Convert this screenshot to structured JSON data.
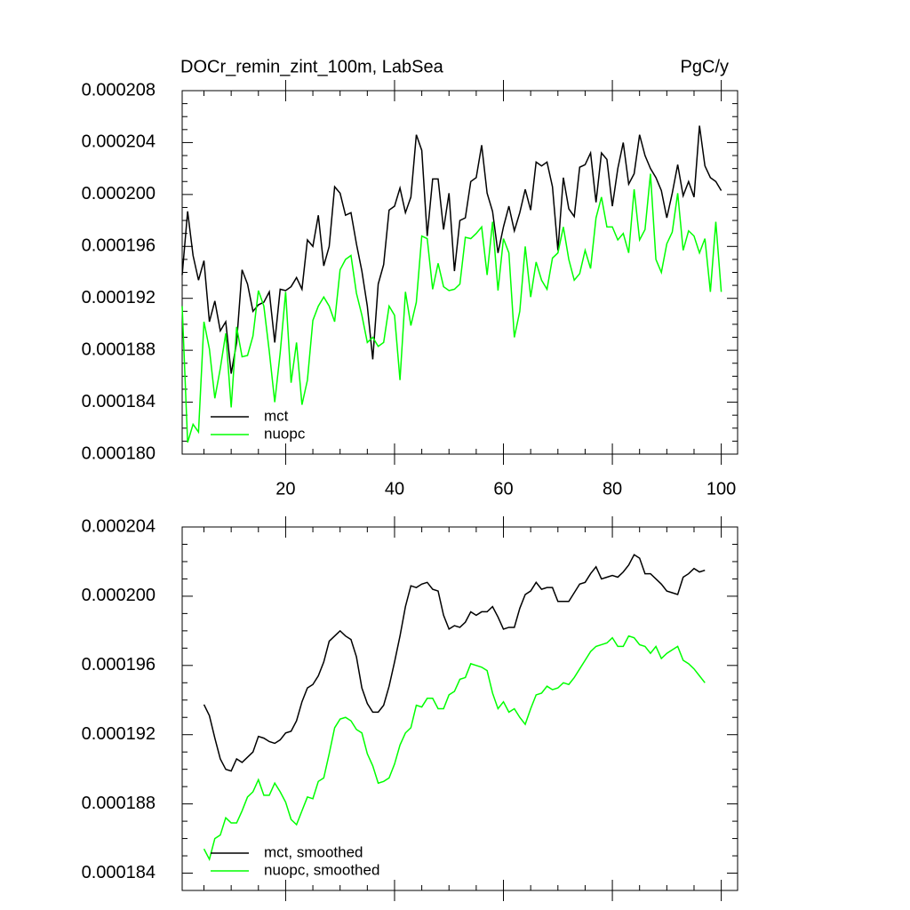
{
  "chart_data": [
    {
      "type": "line",
      "title": "DOCr_remin_zint_100m, LabSea",
      "units": "PgC/y",
      "x": [
        1,
        2,
        3,
        4,
        5,
        6,
        7,
        8,
        9,
        10,
        11,
        12,
        13,
        14,
        15,
        16,
        17,
        18,
        19,
        20,
        21,
        22,
        23,
        24,
        25,
        26,
        27,
        28,
        29,
        30,
        31,
        32,
        33,
        34,
        35,
        36,
        37,
        38,
        39,
        40,
        41,
        42,
        43,
        44,
        45,
        46,
        47,
        48,
        49,
        50,
        51,
        52,
        53,
        54,
        55,
        56,
        57,
        58,
        59,
        60,
        61,
        62,
        63,
        64,
        65,
        66,
        67,
        68,
        69,
        70,
        71,
        72,
        73,
        74,
        75,
        76,
        77,
        78,
        79,
        80,
        81,
        82,
        83,
        84,
        85,
        86,
        87,
        88,
        89,
        90,
        91,
        92,
        93,
        94,
        95,
        96,
        97,
        98,
        99,
        100
      ],
      "series": [
        {
          "name": "mct",
          "color": "#000000",
          "values": [
            0.0001938,
            0.0001987,
            0.0001953,
            0.0001934,
            0.0001949,
            0.0001902,
            0.0001918,
            0.0001895,
            0.0001902,
            0.0001862,
            0.0001886,
            0.0001942,
            0.0001931,
            0.000191,
            0.0001915,
            0.0001917,
            0.0001925,
            0.0001886,
            0.0001927,
            0.0001926,
            0.0001929,
            0.0001936,
            0.0001927,
            0.0001965,
            0.000196,
            0.0001984,
            0.0001945,
            0.000196,
            0.0002006,
            0.0002001,
            0.0001984,
            0.0001986,
            0.0001962,
            0.0001941,
            0.0001914,
            0.0001873,
            0.0001931,
            0.0001946,
            0.0001988,
            0.0001991,
            0.0002005,
            0.0001986,
            0.0001998,
            0.0002046,
            0.0002034,
            0.0001968,
            0.0002012,
            0.0002012,
            0.0001973,
            0.0002001,
            0.0001941,
            0.000198,
            0.0001982,
            0.000201,
            0.0002013,
            0.0002038,
            0.0002001,
            0.0001987,
            0.0001955,
            0.0001975,
            0.0001991,
            0.0001972,
            0.0001986,
            0.0002004,
            0.0001988,
            0.0002025,
            0.0002022,
            0.0002025,
            0.0002006,
            0.0001957,
            0.0002013,
            0.0001989,
            0.0001983,
            0.0002021,
            0.0002023,
            0.0002032,
            0.0001994,
            0.0002032,
            0.0002027,
            0.0001991,
            0.000202,
            0.000204,
            0.0002008,
            0.0002016,
            0.0002046,
            0.000203,
            0.000202,
            0.0002013,
            0.0002003,
            0.0001982,
            0.0002001,
            0.0002023,
            0.0001999,
            0.000201,
            0.0001998,
            0.0002053,
            0.0002022,
            0.0002013,
            0.000201,
            0.0002003
          ]
        },
        {
          "name": "nuopc",
          "color": "#00ff00",
          "values": [
            0.0001914,
            0.0001809,
            0.0001823,
            0.0001817,
            0.0001902,
            0.0001881,
            0.0001843,
            0.0001866,
            0.0001893,
            0.0001836,
            0.0001898,
            0.0001875,
            0.0001876,
            0.0001891,
            0.0001926,
            0.0001914,
            0.0001879,
            0.000184,
            0.0001878,
            0.0001925,
            0.0001855,
            0.0001886,
            0.0001838,
            0.0001857,
            0.0001903,
            0.0001914,
            0.0001921,
            0.0001914,
            0.0001902,
            0.0001942,
            0.000195,
            0.0001953,
            0.0001924,
            0.0001907,
            0.0001886,
            0.000189,
            0.0001883,
            0.0001886,
            0.0001914,
            0.0001907,
            0.0001857,
            0.0001925,
            0.0001899,
            0.0001917,
            0.0001968,
            0.0001966,
            0.0001927,
            0.0001947,
            0.0001929,
            0.0001926,
            0.0001927,
            0.0001931,
            0.0001967,
            0.0001966,
            0.000197,
            0.0001975,
            0.0001938,
            0.0001979,
            0.0001926,
            0.0001966,
            0.0001955,
            0.000189,
            0.000191,
            0.000196,
            0.0001921,
            0.0001948,
            0.0001934,
            0.0001927,
            0.0001951,
            0.0001955,
            0.0001975,
            0.000195,
            0.0001934,
            0.0001939,
            0.0001957,
            0.0001943,
            0.0001982,
            0.0001998,
            0.0001975,
            0.0001975,
            0.0001965,
            0.000197,
            0.0001955,
            0.0002004,
            0.0001965,
            0.0001973,
            0.0002016,
            0.000195,
            0.000194,
            0.0001962,
            0.0001971,
            0.0002001,
            0.0001957,
            0.0001972,
            0.0001968,
            0.0001955,
            0.0001966,
            0.0001925,
            0.0001979,
            0.0001925
          ]
        }
      ],
      "xlim": [
        1,
        103
      ],
      "xticks": [
        20,
        40,
        60,
        80,
        100
      ],
      "ylim": [
        0.00018,
        0.000208
      ],
      "yticks": [
        {
          "value": 0.00018,
          "label": "0.000180"
        },
        {
          "value": 0.000184,
          "label": "0.000184"
        },
        {
          "value": 0.000188,
          "label": "0.000188"
        },
        {
          "value": 0.000192,
          "label": "0.000192"
        },
        {
          "value": 0.000196,
          "label": "0.000196"
        },
        {
          "value": 0.0002,
          "label": "0.000200"
        },
        {
          "value": 0.000204,
          "label": "0.000204"
        },
        {
          "value": 0.000208,
          "label": "0.000208"
        }
      ],
      "xtick_labels": true,
      "legend": "lower left"
    },
    {
      "type": "line",
      "x": [
        5,
        6,
        7,
        8,
        9,
        10,
        11,
        12,
        13,
        14,
        15,
        16,
        17,
        18,
        19,
        20,
        21,
        22,
        23,
        24,
        25,
        26,
        27,
        28,
        29,
        30,
        31,
        32,
        33,
        34,
        35,
        36,
        37,
        38,
        39,
        40,
        41,
        42,
        43,
        44,
        45,
        46,
        47,
        48,
        49,
        50,
        51,
        52,
        53,
        54,
        55,
        56,
        57,
        58,
        59,
        60,
        61,
        62,
        63,
        64,
        65,
        66,
        67,
        68,
        69,
        70,
        71,
        72,
        73,
        74,
        75,
        76,
        77,
        78,
        79,
        80,
        81,
        82,
        83,
        84,
        85,
        86,
        87,
        88,
        89,
        90,
        91,
        92,
        93,
        94,
        95,
        96,
        97
      ],
      "series": [
        {
          "name": "mct, smoothed",
          "color": "#000000",
          "values": [
            0.00019374,
            0.0001931,
            0.0001918,
            0.0001906,
            0.00019,
            0.0001899,
            0.0001906,
            0.0001904,
            0.0001907,
            0.000191,
            0.0001919,
            0.0001918,
            0.0001916,
            0.0001915,
            0.0001917,
            0.0001921,
            0.0001922,
            0.0001928,
            0.0001939,
            0.0001947,
            0.0001949,
            0.0001954,
            0.0001962,
            0.0001974,
            0.0001977,
            0.000198,
            0.0001977,
            0.0001975,
            0.0001965,
            0.0001947,
            0.0001938,
            0.0001933,
            0.0001933,
            0.0001937,
            0.0001948,
            0.0001962,
            0.0001977,
            0.0001994,
            0.0002006,
            0.0002005,
            0.0002007,
            0.0002008,
            0.0002004,
            0.0002003,
            0.0001989,
            0.0001981,
            0.0001983,
            0.0001982,
            0.0001985,
            0.0001991,
            0.0001989,
            0.0001991,
            0.0001991,
            0.0001994,
            0.0001988,
            0.0001981,
            0.0001982,
            0.0001982,
            0.0001993,
            0.0002001,
            0.0002003,
            0.0002008,
            0.0002004,
            0.0002005,
            0.0002005,
            0.0001997,
            0.0001997,
            0.0001997,
            0.0002002,
            0.0002007,
            0.0002008,
            0.0002013,
            0.0002017,
            0.000201,
            0.0002011,
            0.0002012,
            0.0002011,
            0.0002014,
            0.0002018,
            0.0002024,
            0.0002022,
            0.0002013,
            0.0002013,
            0.000201,
            0.0002007,
            0.0002003,
            0.0002002,
            0.0002001,
            0.0002011,
            0.0002013,
            0.0002016,
            0.0002014,
            0.0002015
          ]
        },
        {
          "name": "nuopc, smoothed",
          "color": "#00ff00",
          "values": [
            0.0001854,
            0.0001848,
            0.000186,
            0.0001862,
            0.0001872,
            0.0001869,
            0.0001869,
            0.0001876,
            0.0001884,
            0.0001887,
            0.0001894,
            0.0001885,
            0.0001885,
            0.0001892,
            0.0001887,
            0.0001881,
            0.0001871,
            0.0001868,
            0.0001876,
            0.0001884,
            0.0001883,
            0.0001893,
            0.0001895,
            0.0001909,
            0.0001924,
            0.0001929,
            0.000193,
            0.0001928,
            0.0001923,
            0.0001921,
            0.0001909,
            0.0001902,
            0.0001892,
            0.0001893,
            0.0001895,
            0.0001903,
            0.0001914,
            0.0001921,
            0.0001924,
            0.0001937,
            0.0001936,
            0.0001941,
            0.0001941,
            0.0001935,
            0.0001935,
            0.0001943,
            0.0001945,
            0.0001952,
            0.0001953,
            0.0001961,
            0.000196,
            0.0001959,
            0.0001957,
            0.0001944,
            0.0001935,
            0.0001939,
            0.0001933,
            0.0001935,
            0.000193,
            0.0001926,
            0.0001935,
            0.0001943,
            0.0001944,
            0.0001948,
            0.0001946,
            0.0001947,
            0.000195,
            0.0001949,
            0.0001953,
            0.0001958,
            0.0001963,
            0.0001968,
            0.0001971,
            0.0001972,
            0.0001973,
            0.0001976,
            0.0001971,
            0.0001971,
            0.0001977,
            0.0001976,
            0.0001972,
            0.0001971,
            0.0001967,
            0.0001971,
            0.0001964,
            0.0001967,
            0.0001969,
            0.0001971,
            0.0001963,
            0.0001961,
            0.0001958,
            0.0001954,
            0.000195
          ]
        }
      ],
      "xlim": [
        1,
        103
      ],
      "xticks": [
        20,
        40,
        60,
        80,
        100
      ],
      "ylim": [
        0.000183,
        0.000204
      ],
      "yticks": [
        {
          "value": 0.000184,
          "label": "0.000184"
        },
        {
          "value": 0.000188,
          "label": "0.000188"
        },
        {
          "value": 0.000192,
          "label": "0.000192"
        },
        {
          "value": 0.000196,
          "label": "0.000196"
        },
        {
          "value": 0.0002,
          "label": "0.000200"
        },
        {
          "value": 0.000204,
          "label": "0.000204"
        }
      ],
      "xtick_labels": false,
      "legend": "lower left"
    }
  ]
}
